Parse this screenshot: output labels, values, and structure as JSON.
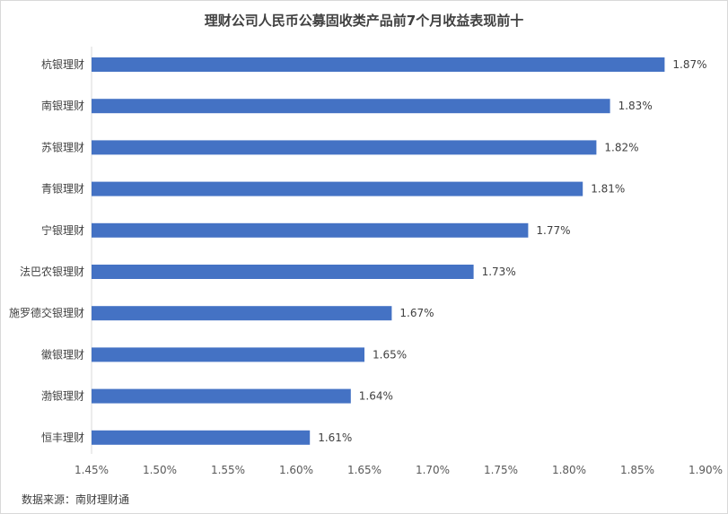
{
  "chart_data": {
    "type": "bar",
    "orientation": "horizontal",
    "title": "理财公司人民币公募固收类产品前7个月收益表现前十",
    "categories": [
      "杭银理财",
      "南银理财",
      "苏银理财",
      "青银理财",
      "宁银理财",
      "法巴农银理财",
      "施罗德交银理财",
      "徽银理财",
      "渤银理财",
      "恒丰理财"
    ],
    "values": [
      1.87,
      1.83,
      1.82,
      1.81,
      1.77,
      1.73,
      1.67,
      1.65,
      1.64,
      1.61
    ],
    "data_labels": [
      "1.87%",
      "1.83%",
      "1.82%",
      "1.81%",
      "1.77%",
      "1.73%",
      "1.67%",
      "1.65%",
      "1.64%",
      "1.61%"
    ],
    "xlim": [
      1.45,
      1.9
    ],
    "xticks": [
      "1.45%",
      "1.50%",
      "1.55%",
      "1.60%",
      "1.65%",
      "1.70%",
      "1.75%",
      "1.80%",
      "1.85%",
      "1.90%"
    ],
    "xlabel": "",
    "ylabel": "",
    "bar_color": "#4472C4",
    "grid": false,
    "legend": "none"
  },
  "source_text": "数据来源：南财理财通"
}
